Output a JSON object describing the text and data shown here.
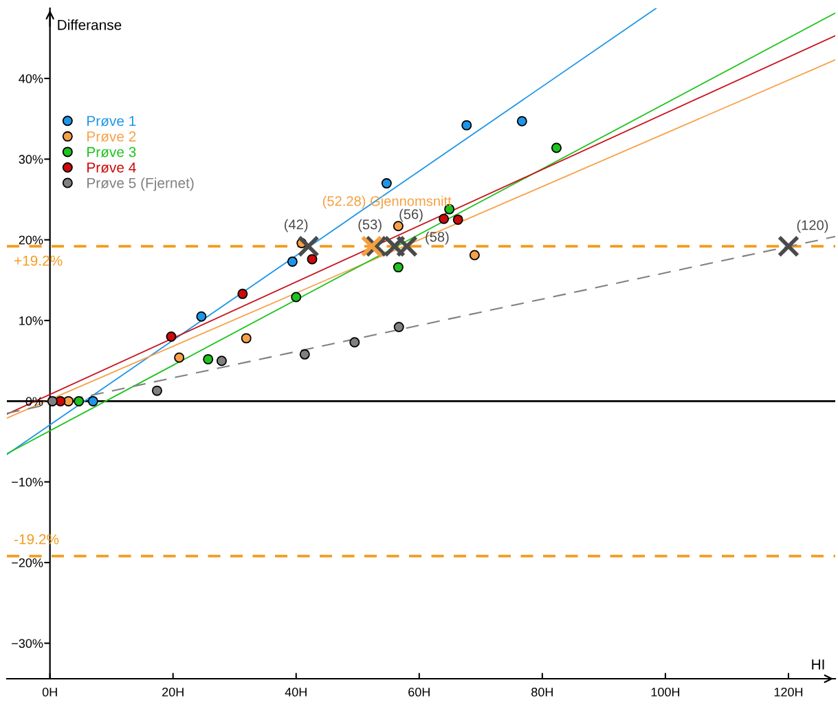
{
  "chart_data": {
    "type": "scatter",
    "xlabel": "HI",
    "ylabel": "Differanse",
    "xlim": [
      -7,
      127.6
    ],
    "ylim": [
      -34.4,
      48.7
    ],
    "xticks": [
      {
        "value": 0,
        "label": "0H"
      },
      {
        "value": 20,
        "label": "20H"
      },
      {
        "value": 40,
        "label": "40H"
      },
      {
        "value": 60,
        "label": "60H"
      },
      {
        "value": 80,
        "label": "80H"
      },
      {
        "value": 100,
        "label": "100H"
      },
      {
        "value": 120,
        "label": "120H"
      }
    ],
    "yticks": [
      {
        "value": -30,
        "label": "−30%"
      },
      {
        "value": -20,
        "label": "−20%"
      },
      {
        "value": -10,
        "label": "−10%"
      },
      {
        "value": 0,
        "label": "0%"
      },
      {
        "value": 10,
        "label": "10%"
      },
      {
        "value": 20,
        "label": "20%"
      },
      {
        "value": 30,
        "label": "30%"
      },
      {
        "value": 40,
        "label": "40%"
      }
    ],
    "legend": "top left",
    "series": [
      {
        "name": "Prøve 1",
        "type": "scatter",
        "marker": "circle",
        "color": "#1e96e8",
        "x": [
          7.0,
          24.6,
          39.4,
          54.7,
          67.7,
          76.7
        ],
        "values": [
          0,
          10.5,
          17.3,
          27.0,
          34.2,
          34.7
        ]
      },
      {
        "name": "Prøve 2",
        "type": "scatter",
        "marker": "circle",
        "color": "#f7a047",
        "x": [
          3.0,
          21.0,
          31.9,
          40.9,
          56.6,
          69.0
        ],
        "values": [
          0,
          5.4,
          7.8,
          19.6,
          21.7,
          18.1
        ]
      },
      {
        "name": "Prøve 3",
        "type": "scatter",
        "marker": "circle",
        "color": "#1ec31e",
        "x": [
          4.7,
          25.7,
          40.0,
          56.6,
          64.9,
          82.3
        ],
        "values": [
          0,
          5.2,
          12.9,
          16.6,
          23.8,
          31.4
        ]
      },
      {
        "name": "Prøve 4",
        "type": "scatter",
        "marker": "circle",
        "color": "#cc0a0a",
        "x": [
          1.7,
          19.7,
          31.3,
          42.6,
          64.0,
          66.3
        ],
        "values": [
          0,
          8.0,
          13.3,
          17.6,
          22.6,
          22.5
        ]
      },
      {
        "name": "Prøve 5 (Fjernet)",
        "type": "scatter",
        "marker": "circle",
        "color": "#808080",
        "x": [
          0.4,
          17.4,
          27.9,
          41.4,
          49.5,
          56.7
        ],
        "values": [
          0,
          1.3,
          5.0,
          5.8,
          7.3,
          9.2
        ]
      },
      {
        "type": "line",
        "line_style": "solid",
        "color": "#1e96e8",
        "x": [
          -7,
          98.5
        ],
        "values": [
          -6.6,
          48.7
        ]
      },
      {
        "type": "line",
        "line_style": "solid",
        "color": "#f7a047",
        "x": [
          -7,
          127.6
        ],
        "values": [
          -2.1,
          42.3
        ]
      },
      {
        "type": "line",
        "line_style": "solid",
        "color": "#1ec31e",
        "x": [
          -7,
          127.6
        ],
        "values": [
          -6.5,
          48.1
        ]
      },
      {
        "type": "line",
        "line_style": "solid",
        "color": "#c8141e",
        "x": [
          -7,
          127.6
        ],
        "values": [
          -1.6,
          45.3
        ]
      },
      {
        "type": "line",
        "line_style": "dashed",
        "color": "#808080",
        "x": [
          -7,
          127.6
        ],
        "values": [
          -1.5,
          20.4
        ]
      },
      {
        "type": "scatter",
        "marker": "cross",
        "color": "#4a4a4a",
        "x": [
          42,
          53,
          56,
          58,
          120
        ],
        "values": [
          19.2,
          19.2,
          19.2,
          19.2,
          19.2
        ]
      },
      {
        "type": "scatter",
        "marker": "cross",
        "color": "#f5a040",
        "x": [
          52.28
        ],
        "values": [
          19.2
        ]
      }
    ],
    "ref_lines": [
      {
        "axis": "y",
        "value": 0,
        "color": "#000000",
        "line_style": "solid"
      },
      {
        "axis": "y",
        "value": 19.2,
        "label": "+19.2%",
        "color": "#f39c1e",
        "line_style": "dashed"
      },
      {
        "axis": "y",
        "value": -19.2,
        "label": "-19.2%",
        "color": "#f39c1e",
        "line_style": "dashed"
      }
    ],
    "annotations": [
      {
        "text": "(42)",
        "x": 42,
        "y": 19.2
      },
      {
        "text": "(53)",
        "x": 53,
        "y": 19.2
      },
      {
        "text": "(56)",
        "x": 56,
        "y": 19.2
      },
      {
        "text": "(58)",
        "x": 58,
        "y": 19.2
      },
      {
        "text": "(120)",
        "x": 120,
        "y": 19.2
      },
      {
        "text": "(52.28) Gjennomsnitt",
        "x": 52.28,
        "y": 19.2
      }
    ]
  }
}
